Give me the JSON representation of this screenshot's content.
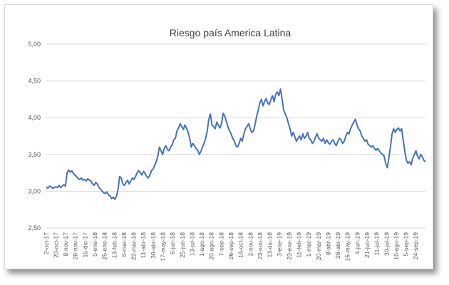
{
  "chart_data": {
    "type": "line",
    "title": "Riesgo país America Latina",
    "xlabel": "",
    "ylabel": "",
    "ylim": [
      2.5,
      5.0
    ],
    "yticks": [
      "2,50",
      "3,00",
      "3,50",
      "4,00",
      "4,50",
      "5,00"
    ],
    "grid": true,
    "legend": "none",
    "line_color": "#4472c4",
    "x_tick_labels": [
      "2-oct-17",
      "20-oct-17",
      "8-nov-17",
      "28-nov-17",
      "15-dic-17",
      "5-ene-18",
      "25-ene-18",
      "13-feb-18",
      "5-mar-18",
      "22-mar-18",
      "11-abr-18",
      "30-abr-18",
      "17-may-18",
      "6-jun-18",
      "25-jun-18",
      "13-jul-18",
      "1-ago-18",
      "20-ago-18",
      "7-sep-18",
      "26-sep-18",
      "16-oct-18",
      "2-nov-18",
      "23-nov-18",
      "13-dic-18",
      "3-ene-19",
      "23-ene-19",
      "11-feb-19",
      "1-mar-19",
      "20-mar-19",
      "8-abr-19",
      "26-abr-19",
      "15-may-19",
      "4-jun-19",
      "21-jun-19",
      "11-jul-19",
      "30-jul-19",
      "16-ago-19",
      "5-sep-19",
      "24-sep-19"
    ],
    "series": [
      {
        "values": [
          [
            0,
            3.06
          ],
          [
            2,
            3.04
          ],
          [
            4,
            3.07
          ],
          [
            6,
            3.06
          ],
          [
            8,
            3.04
          ],
          [
            10,
            3.05
          ],
          [
            12,
            3.06
          ],
          [
            14,
            3.05
          ],
          [
            16,
            3.08
          ],
          [
            18,
            3.05
          ],
          [
            20,
            3.07
          ],
          [
            22,
            3.09
          ],
          [
            24,
            3.07
          ],
          [
            26,
            3.25
          ],
          [
            28,
            3.29
          ],
          [
            30,
            3.26
          ],
          [
            32,
            3.28
          ],
          [
            34,
            3.24
          ],
          [
            36,
            3.22
          ],
          [
            38,
            3.2
          ],
          [
            40,
            3.17
          ],
          [
            42,
            3.16
          ],
          [
            44,
            3.18
          ],
          [
            46,
            3.15
          ],
          [
            48,
            3.16
          ],
          [
            50,
            3.14
          ],
          [
            52,
            3.17
          ],
          [
            54,
            3.15
          ],
          [
            56,
            3.14
          ],
          [
            58,
            3.1
          ],
          [
            60,
            3.08
          ],
          [
            62,
            3.12
          ],
          [
            64,
            3.1
          ],
          [
            66,
            3.05
          ],
          [
            68,
            3.03
          ],
          [
            70,
            3.0
          ],
          [
            72,
            2.98
          ],
          [
            74,
            2.97
          ],
          [
            76,
            2.99
          ],
          [
            78,
            2.95
          ],
          [
            80,
            2.94
          ],
          [
            82,
            2.9
          ],
          [
            84,
            2.92
          ],
          [
            86,
            2.89
          ],
          [
            88,
            2.93
          ],
          [
            90,
            3.02
          ],
          [
            92,
            3.2
          ],
          [
            94,
            3.18
          ],
          [
            96,
            3.1
          ],
          [
            98,
            3.08
          ],
          [
            100,
            3.12
          ],
          [
            102,
            3.15
          ],
          [
            104,
            3.1
          ],
          [
            106,
            3.14
          ],
          [
            108,
            3.18
          ],
          [
            110,
            3.16
          ],
          [
            112,
            3.2
          ],
          [
            114,
            3.25
          ],
          [
            116,
            3.28
          ],
          [
            118,
            3.25
          ],
          [
            120,
            3.22
          ],
          [
            122,
            3.27
          ],
          [
            124,
            3.24
          ],
          [
            126,
            3.2
          ],
          [
            128,
            3.18
          ],
          [
            130,
            3.22
          ],
          [
            132,
            3.28
          ],
          [
            134,
            3.3
          ],
          [
            136,
            3.35
          ],
          [
            138,
            3.4
          ],
          [
            140,
            3.48
          ],
          [
            142,
            3.6
          ],
          [
            144,
            3.55
          ],
          [
            146,
            3.5
          ],
          [
            148,
            3.58
          ],
          [
            150,
            3.62
          ],
          [
            152,
            3.57
          ],
          [
            154,
            3.55
          ],
          [
            156,
            3.6
          ],
          [
            158,
            3.63
          ],
          [
            160,
            3.7
          ],
          [
            162,
            3.72
          ],
          [
            164,
            3.82
          ],
          [
            166,
            3.86
          ],
          [
            168,
            3.92
          ],
          [
            170,
            3.88
          ],
          [
            172,
            3.84
          ],
          [
            174,
            3.9
          ],
          [
            176,
            3.86
          ],
          [
            178,
            3.8
          ],
          [
            180,
            3.72
          ],
          [
            182,
            3.6
          ],
          [
            184,
            3.65
          ],
          [
            186,
            3.62
          ],
          [
            188,
            3.58
          ],
          [
            190,
            3.56
          ],
          [
            192,
            3.5
          ],
          [
            194,
            3.54
          ],
          [
            196,
            3.6
          ],
          [
            198,
            3.65
          ],
          [
            200,
            3.72
          ],
          [
            202,
            3.82
          ],
          [
            204,
            3.98
          ],
          [
            206,
            4.05
          ],
          [
            208,
            3.9
          ],
          [
            210,
            3.88
          ],
          [
            212,
            3.85
          ],
          [
            214,
            3.94
          ],
          [
            216,
            3.9
          ],
          [
            218,
            3.86
          ],
          [
            220,
            3.92
          ],
          [
            222,
            4.06
          ],
          [
            224,
            4.02
          ],
          [
            226,
            3.95
          ],
          [
            228,
            3.88
          ],
          [
            230,
            3.82
          ],
          [
            232,
            3.78
          ],
          [
            234,
            3.72
          ],
          [
            236,
            3.68
          ],
          [
            238,
            3.62
          ],
          [
            240,
            3.6
          ],
          [
            242,
            3.65
          ],
          [
            244,
            3.72
          ],
          [
            246,
            3.68
          ],
          [
            248,
            3.78
          ],
          [
            250,
            3.85
          ],
          [
            252,
            3.88
          ],
          [
            254,
            3.92
          ],
          [
            256,
            3.85
          ],
          [
            258,
            3.8
          ],
          [
            260,
            3.82
          ],
          [
            262,
            3.9
          ],
          [
            264,
            4.02
          ],
          [
            266,
            4.1
          ],
          [
            268,
            4.2
          ],
          [
            270,
            4.25
          ],
          [
            272,
            4.16
          ],
          [
            274,
            4.22
          ],
          [
            276,
            4.26
          ],
          [
            278,
            4.2
          ],
          [
            280,
            4.18
          ],
          [
            282,
            4.25
          ],
          [
            284,
            4.3
          ],
          [
            286,
            4.22
          ],
          [
            288,
            4.32
          ],
          [
            290,
            4.35
          ],
          [
            292,
            4.3
          ],
          [
            294,
            4.39
          ],
          [
            296,
            4.25
          ],
          [
            298,
            4.1
          ],
          [
            300,
            4.05
          ],
          [
            302,
            4.0
          ],
          [
            304,
            3.92
          ],
          [
            306,
            3.85
          ],
          [
            308,
            3.75
          ],
          [
            310,
            3.8
          ],
          [
            312,
            3.74
          ],
          [
            314,
            3.68
          ],
          [
            316,
            3.72
          ],
          [
            318,
            3.75
          ],
          [
            320,
            3.7
          ],
          [
            322,
            3.78
          ],
          [
            324,
            3.72
          ],
          [
            326,
            3.75
          ],
          [
            328,
            3.8
          ],
          [
            330,
            3.72
          ],
          [
            332,
            3.7
          ],
          [
            334,
            3.65
          ],
          [
            336,
            3.68
          ],
          [
            338,
            3.74
          ],
          [
            340,
            3.78
          ],
          [
            342,
            3.72
          ],
          [
            344,
            3.7
          ],
          [
            346,
            3.68
          ],
          [
            348,
            3.72
          ],
          [
            350,
            3.65
          ],
          [
            352,
            3.7
          ],
          [
            354,
            3.66
          ],
          [
            356,
            3.64
          ],
          [
            358,
            3.68
          ],
          [
            360,
            3.7
          ],
          [
            362,
            3.65
          ],
          [
            364,
            3.62
          ],
          [
            366,
            3.68
          ],
          [
            368,
            3.72
          ],
          [
            370,
            3.7
          ],
          [
            372,
            3.65
          ],
          [
            374,
            3.68
          ],
          [
            376,
            3.75
          ],
          [
            378,
            3.8
          ],
          [
            380,
            3.78
          ],
          [
            382,
            3.85
          ],
          [
            384,
            3.9
          ],
          [
            386,
            3.94
          ],
          [
            388,
            3.98
          ],
          [
            390,
            3.9
          ],
          [
            392,
            3.85
          ],
          [
            394,
            3.82
          ],
          [
            396,
            3.75
          ],
          [
            398,
            3.72
          ],
          [
            400,
            3.68
          ],
          [
            402,
            3.7
          ],
          [
            404,
            3.64
          ],
          [
            406,
            3.62
          ],
          [
            408,
            3.6
          ],
          [
            410,
            3.62
          ],
          [
            412,
            3.58
          ],
          [
            414,
            3.56
          ],
          [
            416,
            3.58
          ],
          [
            418,
            3.55
          ],
          [
            420,
            3.52
          ],
          [
            422,
            3.5
          ],
          [
            424,
            3.48
          ],
          [
            426,
            3.38
          ],
          [
            428,
            3.32
          ],
          [
            430,
            3.45
          ],
          [
            432,
            3.6
          ],
          [
            434,
            3.78
          ],
          [
            436,
            3.85
          ],
          [
            438,
            3.8
          ],
          [
            440,
            3.84
          ],
          [
            442,
            3.86
          ],
          [
            444,
            3.82
          ],
          [
            446,
            3.85
          ],
          [
            448,
            3.7
          ],
          [
            450,
            3.55
          ],
          [
            452,
            3.42
          ],
          [
            454,
            3.38
          ],
          [
            456,
            3.4
          ],
          [
            458,
            3.36
          ],
          [
            460,
            3.45
          ],
          [
            462,
            3.5
          ],
          [
            464,
            3.55
          ],
          [
            466,
            3.48
          ],
          [
            468,
            3.44
          ],
          [
            470,
            3.5
          ],
          [
            472,
            3.47
          ],
          [
            474,
            3.42
          ],
          [
            476,
            3.4
          ]
        ]
      }
    ]
  }
}
